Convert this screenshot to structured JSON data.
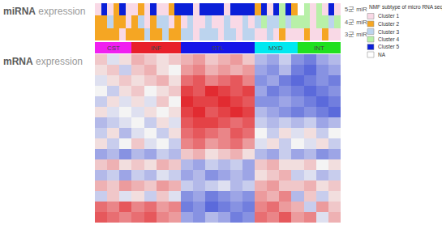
{
  "chart_data": {
    "type": "heatmap",
    "titles": [
      "miRNA expression",
      "mRNA expression"
    ],
    "tracks": [
      {
        "name": "5군 miR",
        "values": [
          1,
          5,
          1,
          2,
          5,
          1,
          1,
          2,
          1,
          5,
          1,
          1,
          2,
          5,
          5,
          5,
          1,
          5,
          5,
          5,
          5,
          1,
          5,
          5,
          5,
          5,
          2,
          5,
          1,
          5,
          4,
          5,
          2,
          null,
          4,
          1,
          4,
          1,
          5,
          1
        ]
      },
      {
        "name": "4군 miR",
        "values": [
          2,
          2,
          3,
          2,
          2,
          1,
          2,
          3,
          1,
          2,
          3,
          3,
          1,
          2,
          1,
          3,
          1,
          1,
          3,
          1,
          1,
          3,
          1,
          1,
          3,
          1,
          3,
          4,
          3,
          3,
          4,
          3,
          4,
          4,
          4,
          1,
          4,
          4,
          3,
          4
        ]
      },
      {
        "name": "3군 miR",
        "values": [
          2,
          2,
          2,
          2,
          1,
          2,
          2,
          2,
          3,
          2,
          2,
          3,
          2,
          2,
          3,
          3,
          1,
          3,
          3,
          3,
          1,
          3,
          3,
          1,
          3,
          3,
          1,
          1,
          3,
          1,
          2,
          1,
          1,
          1,
          2,
          1,
          1,
          2,
          1,
          1
        ]
      }
    ],
    "groups": [
      {
        "label": "CST",
        "color": "#f020f0",
        "n": 6
      },
      {
        "label": "INF",
        "color": "#e8202a",
        "n": 8
      },
      {
        "label": "STL",
        "color": "#1515e8",
        "n": 12
      },
      {
        "label": "MXD",
        "color": "#00e8f0",
        "n": 7
      },
      {
        "label": "INT",
        "color": "#20e020",
        "n": 7
      }
    ],
    "cluster_legend": {
      "title": "NMF subtype of micro RNA seq",
      "items": [
        {
          "name": "Cluster 1",
          "value": 1,
          "color": "#f9d9e6"
        },
        {
          "name": "Cluster 2",
          "value": 2,
          "color": "#f5a623"
        },
        {
          "name": "Cluster 3",
          "value": 3,
          "color": "#bcd4ee"
        },
        {
          "name": "Cluster 4",
          "value": 4,
          "color": "#b8f0a8"
        },
        {
          "name": "Cluster 5",
          "value": 5,
          "color": "#0a1fd8"
        },
        {
          "name": "NA",
          "value": null,
          "color": "#ffffff"
        }
      ]
    },
    "z": [
      [
        0.2,
        -0.1,
        0.1,
        0.3,
        0.2,
        0.1,
        0.2,
        0.3,
        0.4,
        0.2,
        0.3,
        0.4,
        0.2,
        -0.3,
        -0.4,
        -0.2,
        -0.5,
        -0.6,
        -0.4,
        -0.3
      ],
      [
        0.1,
        0.2,
        -0.2,
        0.2,
        0.3,
        0.1,
        0.0,
        0.4,
        0.5,
        0.3,
        0.4,
        0.3,
        0.4,
        -0.4,
        -0.5,
        -0.3,
        -0.6,
        -0.7,
        -0.5,
        -0.4
      ],
      [
        -0.1,
        0.1,
        0.2,
        0.1,
        0.2,
        0.3,
        0.1,
        0.6,
        0.7,
        0.5,
        0.6,
        0.7,
        0.5,
        -0.5,
        -0.4,
        -0.6,
        -0.7,
        -0.6,
        -0.5,
        -0.6
      ],
      [
        0.0,
        -0.2,
        0.1,
        0.2,
        0.0,
        0.1,
        0.2,
        0.8,
        0.7,
        0.9,
        0.8,
        0.7,
        0.8,
        -0.4,
        -0.6,
        -0.5,
        -0.6,
        -0.7,
        -0.6,
        -0.5
      ],
      [
        -0.2,
        0.1,
        -0.1,
        0.1,
        -0.1,
        0.2,
        0.0,
        0.9,
        0.8,
        0.8,
        0.9,
        0.8,
        0.7,
        -0.5,
        -0.5,
        -0.4,
        -0.5,
        -0.6,
        -0.7,
        -0.6
      ],
      [
        0.1,
        -0.1,
        0.0,
        -0.1,
        0.1,
        0.0,
        0.1,
        0.8,
        0.9,
        0.7,
        0.8,
        0.9,
        0.8,
        -0.3,
        -0.4,
        -0.5,
        -0.6,
        -0.5,
        -0.6,
        -0.7
      ],
      [
        -0.3,
        -0.2,
        -0.1,
        0.0,
        -0.2,
        0.1,
        -0.1,
        0.7,
        0.8,
        0.8,
        0.7,
        0.6,
        0.7,
        -0.2,
        -0.3,
        -0.2,
        -0.3,
        -0.2,
        -0.4,
        -0.3
      ],
      [
        -0.2,
        0.1,
        -0.3,
        -0.1,
        0.0,
        -0.2,
        0.1,
        0.6,
        0.7,
        0.6,
        0.5,
        0.7,
        0.6,
        0.0,
        -0.2,
        0.1,
        -0.1,
        0.1,
        -0.2,
        0.0
      ],
      [
        0.1,
        -0.2,
        0.0,
        0.2,
        -0.1,
        0.0,
        -0.2,
        0.5,
        0.6,
        0.4,
        0.5,
        0.6,
        0.4,
        -0.1,
        0.1,
        -0.2,
        0.0,
        -0.1,
        0.1,
        -0.2
      ],
      [
        -0.4,
        -0.3,
        -0.5,
        -0.3,
        -0.4,
        -0.2,
        -0.3,
        0.2,
        0.3,
        0.1,
        0.2,
        0.3,
        0.1,
        -0.3,
        -0.4,
        -0.2,
        -0.4,
        -0.3,
        -0.5,
        -0.4
      ],
      [
        0.2,
        0.3,
        0.1,
        0.2,
        0.1,
        0.3,
        0.2,
        -0.3,
        -0.4,
        -0.2,
        -0.3,
        -0.2,
        -0.4,
        0.2,
        0.3,
        0.1,
        0.1,
        0.2,
        0.0,
        0.1
      ],
      [
        -0.3,
        -0.2,
        -0.4,
        -0.2,
        -0.3,
        -0.1,
        -0.2,
        -0.4,
        -0.3,
        -0.5,
        -0.4,
        -0.3,
        -0.4,
        0.1,
        0.2,
        0.3,
        -0.2,
        -0.1,
        -0.3,
        -0.2
      ],
      [
        0.3,
        0.2,
        0.4,
        0.3,
        0.2,
        0.4,
        0.3,
        -0.2,
        -0.3,
        -0.2,
        -0.1,
        -0.3,
        -0.2,
        0.3,
        0.4,
        0.2,
        0.2,
        0.3,
        0.1,
        0.2
      ],
      [
        -0.2,
        0.2,
        -0.1,
        0.1,
        -0.2,
        0.2,
        -0.1,
        -0.5,
        -0.4,
        -0.6,
        -0.5,
        -0.4,
        -0.5,
        0.4,
        0.3,
        0.5,
        -0.3,
        0.2,
        -0.2,
        0.1
      ],
      [
        0.6,
        0.5,
        0.7,
        0.5,
        0.6,
        0.4,
        0.5,
        -0.6,
        -0.5,
        -0.7,
        -0.6,
        -0.5,
        -0.6,
        0.5,
        0.6,
        0.4,
        0.3,
        -0.2,
        0.4,
        0.2
      ],
      [
        0.7,
        0.6,
        0.5,
        0.6,
        0.7,
        0.5,
        0.4,
        -0.4,
        -0.5,
        -0.3,
        -0.4,
        -0.6,
        -0.5,
        0.6,
        0.5,
        0.7,
        0.4,
        0.5,
        -0.1,
        0.3
      ]
    ],
    "zlim": [
      -1,
      1
    ],
    "tick_labels": false
  }
}
